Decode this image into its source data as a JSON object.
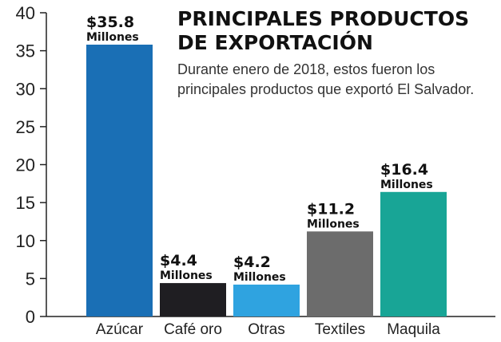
{
  "chart_data": {
    "type": "bar",
    "title_lines": [
      "PRINCIPALES PRODUCTOS",
      "DE EXPORTACIÓN"
    ],
    "subtitle_lines": [
      "Durante enero de 2018, estos fueron los",
      "principales productos que exportó El Salvador."
    ],
    "categories": [
      "Azúcar",
      "Café oro",
      "Otras",
      "Textiles",
      "Maquila"
    ],
    "values": [
      35.8,
      4.4,
      4.2,
      11.2,
      16.4
    ],
    "value_labels": [
      "$35.8",
      "$4.4",
      "$4.2",
      "$11.2",
      "$16.4"
    ],
    "value_unit": "Millones",
    "colors": [
      "#1a6fb5",
      "#1f1e22",
      "#2fa3e0",
      "#6c6c6c",
      "#18a596"
    ],
    "ylim": [
      0,
      40
    ],
    "yticks": [
      0,
      5,
      10,
      15,
      20,
      25,
      30,
      35,
      40
    ],
    "grid": false
  }
}
